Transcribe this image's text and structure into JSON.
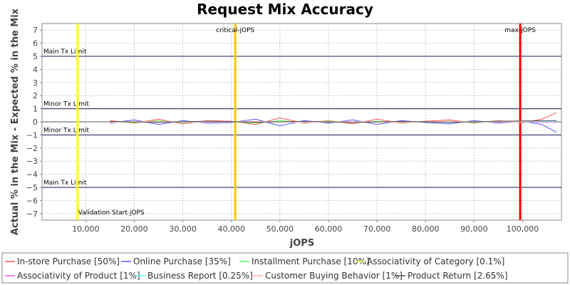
{
  "chart_data": {
    "type": "line",
    "title": "Request Mix Accuracy",
    "xlabel": "jOPS",
    "ylabel": "Actual % in the Mix - Expected % in the Mix",
    "xlim": [
      1000,
      108000
    ],
    "ylim": [
      -7.5,
      7.5
    ],
    "x_ticks": [
      10000,
      20000,
      30000,
      40000,
      50000,
      60000,
      70000,
      80000,
      90000,
      100000
    ],
    "x_tick_labels": [
      "10,000",
      "20,000",
      "30,000",
      "40,000",
      "50,000",
      "60,000",
      "70,000",
      "80,000",
      "90,000",
      "100,000"
    ],
    "y_ticks": [
      -7,
      -6,
      -5,
      -4,
      -3,
      -2,
      -1,
      0,
      1,
      2,
      3,
      4,
      5,
      6,
      7
    ],
    "y_tick_labels": [
      "−7",
      "−6",
      "−5",
      "−4",
      "−3",
      "−2",
      "−1",
      "0",
      "1",
      "2",
      "3",
      "4",
      "5",
      "6",
      "7"
    ],
    "grid": true,
    "legend_position": "bottom",
    "horizontal_lines": [
      {
        "label": "Main Tx Limit",
        "y": 5
      },
      {
        "label": "Minor Tx Limit",
        "y": 1
      },
      {
        "label": "Minor Tx Limit",
        "y": -1
      },
      {
        "label": "Main Tx Limit",
        "y": -5
      }
    ],
    "vertical_lines": [
      {
        "label": "Validation Start jOPS",
        "x": 8300,
        "color": "#ffff00"
      },
      {
        "label": "critical-jOPS",
        "x": 40800,
        "color": "#ffc800"
      },
      {
        "label": "max-jOPS",
        "x": 99500,
        "color": "#ff0000"
      }
    ],
    "series": [
      {
        "name": "In-store Purchase [50%]",
        "color": "#ff5555",
        "x": [
          15000,
          20000,
          25000,
          30000,
          35000,
          40000,
          45000,
          50000,
          55000,
          60000,
          65000,
          70000,
          75000,
          80000,
          85000,
          90000,
          95000,
          100000,
          104000,
          107000
        ],
        "y": [
          0.1,
          -0.1,
          0.2,
          -0.15,
          0.1,
          0.05,
          -0.2,
          0.3,
          -0.1,
          0.1,
          -0.15,
          0.2,
          -0.1,
          0.05,
          0.15,
          -0.1,
          0.1,
          -0.05,
          0.2,
          0.7
        ]
      },
      {
        "name": "Online Purchase [35%]",
        "color": "#5555ff",
        "x": [
          15000,
          20000,
          25000,
          30000,
          35000,
          40000,
          45000,
          50000,
          55000,
          60000,
          65000,
          70000,
          75000,
          80000,
          85000,
          90000,
          95000,
          100000,
          104000,
          107000
        ],
        "y": [
          -0.1,
          0.15,
          -0.2,
          0.1,
          -0.1,
          -0.05,
          0.2,
          -0.3,
          0.1,
          -0.1,
          0.15,
          -0.2,
          0.1,
          -0.05,
          -0.15,
          0.1,
          -0.1,
          0.05,
          -0.2,
          -0.8
        ]
      },
      {
        "name": "Installment Purchase [10%]",
        "color": "#55ff55",
        "x": [
          15000,
          20000,
          25000,
          30000,
          35000,
          40000,
          45000,
          50000,
          55000,
          60000,
          65000,
          70000,
          75000,
          80000,
          85000,
          90000,
          95000,
          100000,
          104000,
          107000
        ],
        "y": [
          0.05,
          -0.05,
          0.1,
          -0.05,
          0.05,
          0.0,
          -0.1,
          0.1,
          -0.05,
          0.05,
          -0.05,
          0.05,
          -0.05,
          0.0,
          0.05,
          -0.05,
          0.05,
          0.0,
          0.05,
          0.1
        ]
      },
      {
        "name": "Associativity of Category [0.1%]",
        "color": "#ffff55",
        "x": [
          15000,
          30000,
          45000,
          60000,
          75000,
          90000,
          107000
        ],
        "y": [
          0.0,
          0.02,
          -0.02,
          0.01,
          -0.01,
          0.02,
          0.0
        ]
      },
      {
        "name": "Associativity of Product [1%]",
        "color": "#ff55ff",
        "x": [
          15000,
          25000,
          35000,
          45000,
          55000,
          65000,
          75000,
          85000,
          95000,
          107000
        ],
        "y": [
          0.02,
          -0.03,
          0.03,
          -0.02,
          0.02,
          -0.03,
          0.02,
          -0.02,
          0.03,
          -0.05
        ]
      },
      {
        "name": "Business Report [0.25%]",
        "color": "#55ffff",
        "x": [
          15000,
          30000,
          45000,
          60000,
          75000,
          90000,
          107000
        ],
        "y": [
          0.01,
          -0.01,
          0.01,
          -0.01,
          0.01,
          -0.01,
          0.02
        ]
      },
      {
        "name": "Customer Buying Behavior [1%]",
        "color": "#ffaaaa",
        "x": [
          15000,
          25000,
          35000,
          45000,
          55000,
          65000,
          75000,
          85000,
          95000,
          107000
        ],
        "y": [
          -0.03,
          0.04,
          -0.02,
          0.03,
          -0.04,
          0.02,
          -0.03,
          0.04,
          -0.02,
          0.1
        ]
      },
      {
        "name": "Product Return [2.65%]",
        "color": "#555555",
        "x": [
          15000,
          25000,
          35000,
          45000,
          55000,
          65000,
          75000,
          85000,
          95000,
          107000
        ],
        "y": [
          0.03,
          -0.04,
          0.05,
          -0.03,
          0.04,
          -0.05,
          0.03,
          -0.04,
          0.05,
          0.1
        ]
      }
    ]
  }
}
